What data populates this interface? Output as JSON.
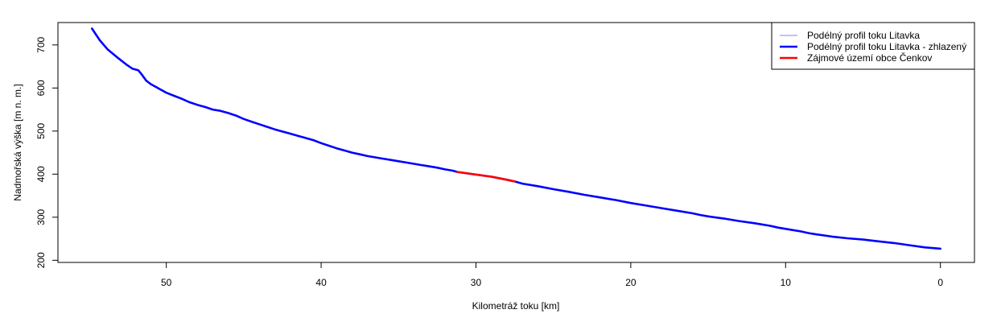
{
  "chart_data": {
    "type": "line",
    "title": "",
    "xlabel": "Kilometráž toku [km]",
    "ylabel": "Nadmořská výška [m n. m.]",
    "xlim": [
      57,
      -2.2
    ],
    "ylim": [
      195,
      752
    ],
    "x_reversed": true,
    "grid": false,
    "legend_position": "top-right",
    "x_ticks": [
      50,
      40,
      30,
      20,
      10,
      0
    ],
    "x_tick_labels": [
      "50",
      "40",
      "30",
      "20",
      "10",
      "0"
    ],
    "y_ticks": [
      200,
      300,
      400,
      500,
      600,
      700
    ],
    "y_tick_labels": [
      "200",
      "300",
      "400",
      "500",
      "600",
      "700"
    ],
    "series": [
      {
        "name": "Podélný profil toku Litavka",
        "color": "#8080ff",
        "style": "thin",
        "points": [
          [
            54.8,
            738
          ],
          [
            54.3,
            711
          ],
          [
            53.8,
            690
          ],
          [
            53.2,
            672
          ],
          [
            52.6,
            655
          ],
          [
            52.2,
            645
          ],
          [
            51.8,
            641
          ],
          [
            51.6,
            632
          ],
          [
            51.3,
            617
          ],
          [
            51.0,
            609
          ],
          [
            50.5,
            599
          ],
          [
            50.0,
            589
          ],
          [
            49.5,
            582
          ],
          [
            49.0,
            575
          ],
          [
            48.5,
            567
          ],
          [
            48.0,
            561
          ],
          [
            47.5,
            556
          ],
          [
            47.0,
            550
          ],
          [
            46.5,
            547
          ],
          [
            46.0,
            542
          ],
          [
            45.5,
            536
          ],
          [
            45.0,
            528
          ],
          [
            44.5,
            522
          ],
          [
            44.0,
            516
          ],
          [
            43.5,
            510
          ],
          [
            43.0,
            504
          ],
          [
            42.5,
            499
          ],
          [
            42.0,
            494
          ],
          [
            41.5,
            489
          ],
          [
            41.0,
            484
          ],
          [
            40.5,
            479
          ],
          [
            40.0,
            472
          ],
          [
            39.5,
            466
          ],
          [
            39.0,
            460
          ],
          [
            38.5,
            455
          ],
          [
            38.0,
            450
          ],
          [
            37.5,
            446
          ],
          [
            37.0,
            442
          ],
          [
            36.5,
            439
          ],
          [
            36.0,
            436
          ],
          [
            35.5,
            433
          ],
          [
            35.0,
            430
          ],
          [
            34.5,
            427
          ],
          [
            34.0,
            424
          ],
          [
            33.5,
            421
          ],
          [
            33.0,
            418
          ],
          [
            32.5,
            415
          ],
          [
            32.0,
            411
          ],
          [
            31.5,
            408
          ],
          [
            31.2,
            405
          ]
        ]
      },
      {
        "name": "Podélný profil toku Litavka - zhlazený",
        "color": "#0000ff",
        "style": "thick",
        "points": [
          [
            54.8,
            738
          ],
          [
            54.3,
            711
          ],
          [
            53.8,
            690
          ],
          [
            53.2,
            672
          ],
          [
            52.6,
            655
          ],
          [
            52.2,
            645
          ],
          [
            51.8,
            641
          ],
          [
            51.6,
            632
          ],
          [
            51.3,
            617
          ],
          [
            51.0,
            609
          ],
          [
            50.5,
            599
          ],
          [
            50.0,
            589
          ],
          [
            49.5,
            582
          ],
          [
            49.0,
            575
          ],
          [
            48.5,
            567
          ],
          [
            48.0,
            561
          ],
          [
            47.5,
            556
          ],
          [
            47.0,
            550
          ],
          [
            46.5,
            547
          ],
          [
            46.0,
            542
          ],
          [
            45.5,
            536
          ],
          [
            45.0,
            528
          ],
          [
            44.5,
            522
          ],
          [
            44.0,
            516
          ],
          [
            43.5,
            510
          ],
          [
            43.0,
            504
          ],
          [
            42.5,
            499
          ],
          [
            42.0,
            494
          ],
          [
            41.5,
            489
          ],
          [
            41.0,
            484
          ],
          [
            40.5,
            479
          ],
          [
            40.0,
            472
          ],
          [
            39.5,
            466
          ],
          [
            39.0,
            460
          ],
          [
            38.5,
            455
          ],
          [
            38.0,
            450
          ],
          [
            37.5,
            446
          ],
          [
            37.0,
            442
          ],
          [
            36.5,
            439
          ],
          [
            36.0,
            436
          ],
          [
            35.5,
            433
          ],
          [
            35.0,
            430
          ],
          [
            34.5,
            427
          ],
          [
            34.0,
            424
          ],
          [
            33.5,
            421
          ],
          [
            33.0,
            418
          ],
          [
            32.5,
            415
          ],
          [
            32.0,
            411
          ],
          [
            31.5,
            408
          ],
          [
            31.2,
            405
          ],
          [
            30.0,
            399
          ],
          [
            29.0,
            394
          ],
          [
            28.0,
            387
          ],
          [
            27.5,
            383
          ],
          [
            27.0,
            378
          ],
          [
            26.0,
            372
          ],
          [
            25.0,
            365
          ],
          [
            24.0,
            359
          ],
          [
            23.0,
            352
          ],
          [
            22.0,
            346
          ],
          [
            21.0,
            340
          ],
          [
            20.0,
            333
          ],
          [
            19.0,
            327
          ],
          [
            18.0,
            321
          ],
          [
            17.0,
            315
          ],
          [
            16.0,
            309
          ],
          [
            15.5,
            305
          ],
          [
            15.0,
            302
          ],
          [
            14.0,
            297
          ],
          [
            13.5,
            294
          ],
          [
            13.0,
            291
          ],
          [
            12.0,
            286
          ],
          [
            11.0,
            280
          ],
          [
            10.5,
            276
          ],
          [
            10.0,
            273
          ],
          [
            9.0,
            267
          ],
          [
            8.5,
            263
          ],
          [
            8.0,
            260
          ],
          [
            7.0,
            255
          ],
          [
            6.0,
            251
          ],
          [
            5.0,
            248
          ],
          [
            4.0,
            244
          ],
          [
            3.0,
            240
          ],
          [
            2.0,
            235
          ],
          [
            1.0,
            230
          ],
          [
            0.0,
            227
          ]
        ]
      },
      {
        "name": "Zájmové území obce Čenkov",
        "color": "#ff0000",
        "style": "thick",
        "points": [
          [
            31.2,
            405
          ],
          [
            30.0,
            399
          ],
          [
            29.0,
            394
          ],
          [
            28.0,
            387
          ],
          [
            27.5,
            383
          ]
        ]
      }
    ]
  }
}
